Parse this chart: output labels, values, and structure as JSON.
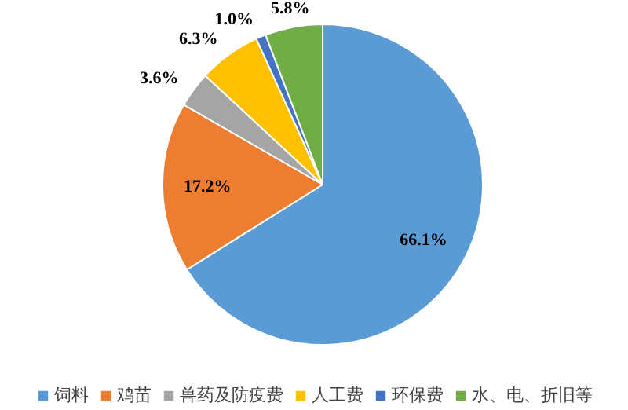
{
  "chart_data": {
    "type": "pie",
    "categories": [
      "饲料",
      "鸡苗",
      "兽药及防疫费",
      "人工费",
      "环保费",
      "水、电、折旧等"
    ],
    "values": [
      66.1,
      17.2,
      3.6,
      6.3,
      1.0,
      5.8
    ],
    "colors": [
      "#5b9bd5",
      "#ed7d31",
      "#a5a5a5",
      "#ffc000",
      "#4472c4",
      "#70ad47"
    ],
    "value_labels": [
      "66.1%",
      "17.2%",
      "3.6%",
      "6.3%",
      "1.0%",
      "5.8%"
    ],
    "legend": "bottom"
  }
}
